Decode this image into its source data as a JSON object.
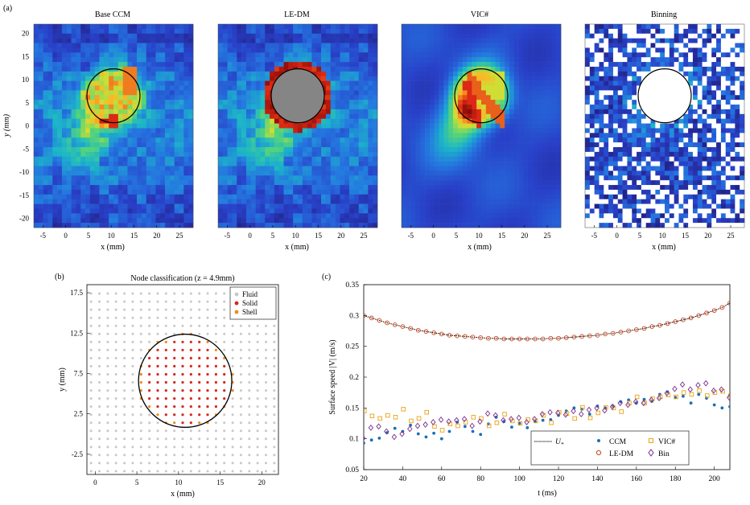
{
  "figure": {
    "panel_labels": [
      "(a)",
      "(b)",
      "(c)"
    ]
  },
  "panel_a": {
    "titles": [
      "Base CCM",
      "LE-DM",
      "VIC#",
      "Binning"
    ],
    "xlabel": "x (mm)",
    "ylabel": "y (mm)",
    "xticks": [
      -5,
      0,
      5,
      10,
      15,
      20,
      25
    ],
    "yticks": [
      -20,
      -15,
      -10,
      -5,
      0,
      5,
      10,
      15,
      20
    ],
    "xlim": [
      -7,
      28
    ],
    "ylim": [
      -22,
      22
    ],
    "circle": {
      "cx": 10.5,
      "cy": 6.5,
      "r": 5.5
    }
  },
  "panel_b": {
    "title": "Node classification (z = 4.9mm)",
    "xlabel": "x (mm)",
    "ylabel": "y (mm)",
    "xticks": [
      "0",
      "5",
      "10",
      "15",
      "20"
    ],
    "yticks": [
      "-2.5",
      "2.5",
      "7.5",
      "12.5",
      "17.5"
    ],
    "xlim": [
      -1,
      22
    ],
    "ylim": [
      -5,
      18.5
    ],
    "legend": [
      "Fluid",
      "Solid",
      "Shell"
    ],
    "colors": {
      "fluid": "#c8c8c8",
      "solid": "#d42a1c",
      "shell": "#f08a1c"
    },
    "circle": {
      "cx": 10.8,
      "cy": 6.6,
      "r": 5.6
    }
  },
  "chart_data": {
    "type": "scatter",
    "xlabel": "t (ms)",
    "ylabel": "Surface speed |V| (m/s)",
    "xlim": [
      20,
      208
    ],
    "ylim": [
      0.05,
      0.35
    ],
    "xticks": [
      "20",
      "40",
      "60",
      "80",
      "100",
      "120",
      "140",
      "160",
      "180",
      "200"
    ],
    "yticks": [
      "0.05",
      "0.1",
      "0.15",
      "0.2",
      "0.25",
      "0.3",
      "0.35"
    ],
    "legend_labels": [
      "U",
      "CCM",
      "LE-DM",
      "VIC#",
      "Bin"
    ],
    "legend_sub": "*",
    "legend_position": "bottom-right",
    "x": [
      20,
      24,
      28,
      32,
      36,
      40,
      44,
      48,
      52,
      56,
      60,
      64,
      68,
      72,
      76,
      80,
      84,
      88,
      92,
      96,
      100,
      104,
      108,
      112,
      116,
      120,
      124,
      128,
      132,
      136,
      140,
      144,
      148,
      152,
      156,
      160,
      164,
      168,
      172,
      176,
      180,
      184,
      188,
      192,
      196,
      200,
      204,
      208
    ],
    "series": [
      {
        "name": "U*",
        "marker": "line",
        "color": "#000000",
        "values": [
          0.3,
          0.296,
          0.292,
          0.288,
          0.285,
          0.282,
          0.279,
          0.276,
          0.274,
          0.272,
          0.27,
          0.268,
          0.267,
          0.266,
          0.265,
          0.264,
          0.263,
          0.263,
          0.262,
          0.262,
          0.262,
          0.262,
          0.262,
          0.262,
          0.263,
          0.263,
          0.264,
          0.265,
          0.266,
          0.267,
          0.268,
          0.27,
          0.271,
          0.273,
          0.275,
          0.277,
          0.279,
          0.282,
          0.284,
          0.287,
          0.29,
          0.293,
          0.296,
          0.3,
          0.304,
          0.308,
          0.313,
          0.32
        ]
      },
      {
        "name": "CCM",
        "marker": "dot",
        "color": "#1a6fb5",
        "values": [
          0.093,
          0.098,
          0.101,
          0.11,
          0.117,
          0.112,
          0.122,
          0.108,
          0.103,
          0.109,
          0.1,
          0.112,
          0.127,
          0.12,
          0.112,
          0.107,
          0.124,
          0.135,
          0.128,
          0.119,
          0.125,
          0.118,
          0.128,
          0.13,
          0.131,
          0.138,
          0.145,
          0.15,
          0.148,
          0.14,
          0.153,
          0.15,
          0.153,
          0.16,
          0.163,
          0.158,
          0.164,
          0.161,
          0.172,
          0.176,
          0.167,
          0.169,
          0.158,
          0.172,
          0.166,
          0.155,
          0.15,
          0.152
        ]
      },
      {
        "name": "LE-DM",
        "marker": "circle",
        "color": "#d0421a",
        "values": [
          0.3,
          0.296,
          0.292,
          0.288,
          0.285,
          0.282,
          0.279,
          0.276,
          0.274,
          0.272,
          0.27,
          0.268,
          0.267,
          0.266,
          0.265,
          0.264,
          0.263,
          0.263,
          0.262,
          0.262,
          0.262,
          0.262,
          0.262,
          0.262,
          0.263,
          0.263,
          0.264,
          0.265,
          0.266,
          0.267,
          0.268,
          0.27,
          0.271,
          0.273,
          0.275,
          0.277,
          0.279,
          0.282,
          0.284,
          0.287,
          0.29,
          0.293,
          0.296,
          0.3,
          0.304,
          0.308,
          0.313,
          0.32
        ]
      },
      {
        "name": "VIC#",
        "marker": "square",
        "color": "#e8a317",
        "values": [
          0.145,
          0.137,
          0.133,
          0.138,
          0.135,
          0.148,
          0.129,
          0.133,
          0.143,
          0.12,
          0.114,
          0.124,
          0.121,
          0.127,
          0.135,
          0.133,
          0.121,
          0.126,
          0.14,
          0.129,
          0.125,
          0.131,
          0.129,
          0.138,
          0.126,
          0.143,
          0.141,
          0.133,
          0.151,
          0.134,
          0.142,
          0.151,
          0.15,
          0.144,
          0.158,
          0.168,
          0.158,
          0.165,
          0.168,
          0.171,
          0.168,
          0.175,
          0.172,
          0.178,
          0.17,
          0.175,
          0.177,
          0.17
        ]
      },
      {
        "name": "Bin",
        "marker": "diamond",
        "color": "#7b2d91",
        "values": [
          0.101,
          0.118,
          0.12,
          0.112,
          0.103,
          0.108,
          0.116,
          0.121,
          0.123,
          0.127,
          0.131,
          0.128,
          0.13,
          0.132,
          0.121,
          0.128,
          0.141,
          0.138,
          0.13,
          0.132,
          0.134,
          0.127,
          0.132,
          0.14,
          0.143,
          0.142,
          0.139,
          0.145,
          0.14,
          0.147,
          0.15,
          0.146,
          0.152,
          0.158,
          0.155,
          0.16,
          0.158,
          0.163,
          0.166,
          0.174,
          0.181,
          0.188,
          0.18,
          0.187,
          0.19,
          0.178,
          0.18,
          0.167
        ]
      }
    ]
  }
}
